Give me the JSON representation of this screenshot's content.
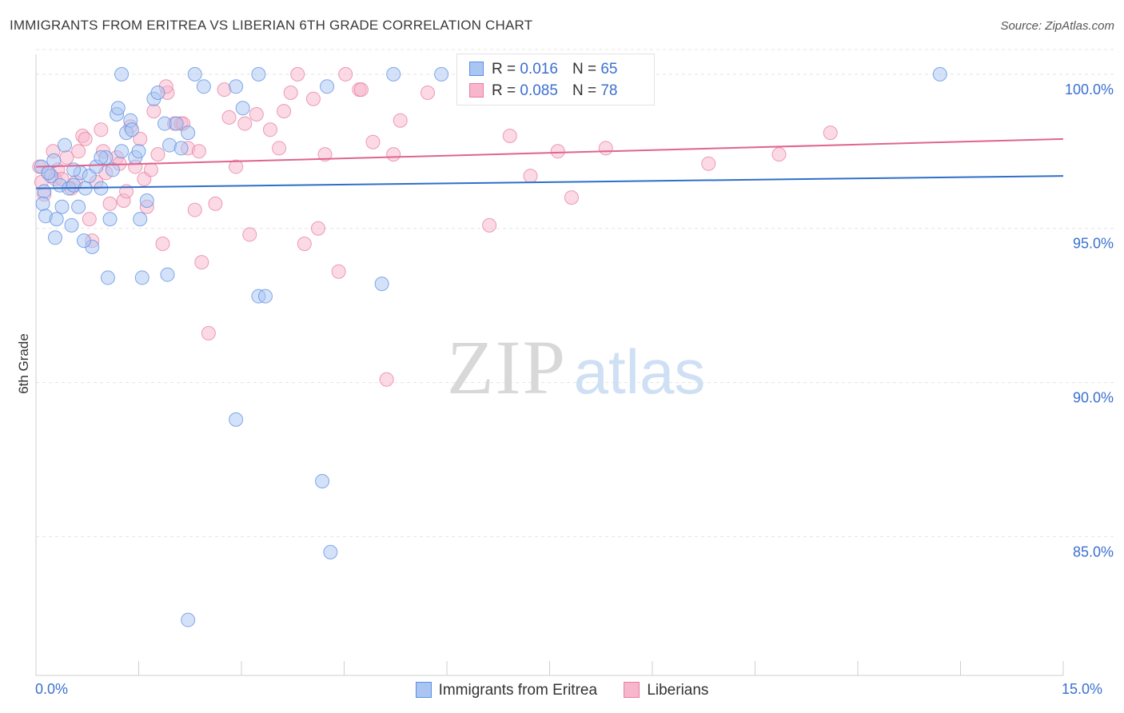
{
  "header": {
    "title": "IMMIGRANTS FROM ERITREA VS LIBERIAN 6TH GRADE CORRELATION CHART",
    "source": "Source: ZipAtlas.com"
  },
  "watermark": {
    "zip": "ZIP",
    "atlas": "atlas"
  },
  "colors": {
    "blue_fill": "#a9c6f3",
    "blue_stroke": "#5b8ee0",
    "blue_line": "#2e6fc9",
    "pink_fill": "#f7b6cb",
    "pink_stroke": "#e77ea0",
    "pink_line": "#e0648e",
    "tick_text": "#3b6fd1",
    "grid": "#e4e4e4"
  },
  "legend": {
    "rows": [
      {
        "r_label": "R =",
        "r_value": "0.016",
        "n_label": "N =",
        "n_value": "65"
      },
      {
        "r_label": "R =",
        "r_value": "0.085",
        "n_label": "N =",
        "n_value": "78"
      }
    ]
  },
  "chart_data": {
    "type": "scatter",
    "title": "IMMIGRANTS FROM ERITREA VS LIBERIAN 6TH GRADE CORRELATION CHART",
    "xlabel": "",
    "ylabel": "6th Grade",
    "xlim": [
      0,
      15
    ],
    "ylim": [
      80.5,
      100.8
    ],
    "x_tick_labels": [
      "0.0%",
      "15.0%"
    ],
    "y_ticks": [
      85,
      90,
      95,
      100
    ],
    "y_tick_labels": [
      "85.0%",
      "90.0%",
      "95.0%",
      "100.0%"
    ],
    "grid": true,
    "series": [
      {
        "name": "Immigrants from Eritrea",
        "color": "blue",
        "R": 0.016,
        "N": 65,
        "trend": {
          "x": [
            0,
            15
          ],
          "y": [
            96.3,
            96.7
          ]
        },
        "points": [
          [
            0.08,
            97.0
          ],
          [
            0.12,
            96.2
          ],
          [
            0.1,
            95.8
          ],
          [
            0.14,
            95.4
          ],
          [
            0.22,
            96.7
          ],
          [
            0.26,
            97.2
          ],
          [
            0.18,
            96.8
          ],
          [
            0.35,
            96.4
          ],
          [
            0.3,
            95.3
          ],
          [
            0.38,
            95.7
          ],
          [
            0.42,
            97.7
          ],
          [
            0.48,
            96.3
          ],
          [
            0.52,
            95.1
          ],
          [
            0.55,
            96.4
          ],
          [
            0.62,
            95.7
          ],
          [
            0.65,
            96.8
          ],
          [
            0.72,
            96.3
          ],
          [
            0.78,
            96.7
          ],
          [
            0.82,
            94.4
          ],
          [
            0.88,
            97.0
          ],
          [
            0.95,
            96.3
          ],
          [
            1.02,
            97.3
          ],
          [
            1.08,
            95.3
          ],
          [
            1.12,
            96.9
          ],
          [
            1.18,
            98.7
          ],
          [
            1.25,
            97.5
          ],
          [
            1.32,
            98.1
          ],
          [
            1.38,
            98.5
          ],
          [
            1.45,
            97.3
          ],
          [
            1.52,
            95.3
          ],
          [
            1.62,
            95.9
          ],
          [
            1.72,
            99.2
          ],
          [
            1.78,
            99.4
          ],
          [
            1.88,
            98.4
          ],
          [
            1.95,
            97.7
          ],
          [
            2.05,
            98.4
          ],
          [
            2.12,
            97.6
          ],
          [
            2.22,
            98.1
          ],
          [
            2.32,
            100.0
          ],
          [
            1.2,
            98.9
          ],
          [
            1.4,
            98.2
          ],
          [
            1.5,
            97.5
          ],
          [
            1.05,
            93.4
          ],
          [
            1.55,
            93.4
          ],
          [
            1.92,
            93.5
          ],
          [
            3.25,
            92.8
          ],
          [
            3.35,
            92.8
          ],
          [
            5.05,
            93.2
          ],
          [
            2.92,
            99.6
          ],
          [
            3.02,
            98.9
          ],
          [
            3.25,
            100.0
          ],
          [
            4.25,
            99.6
          ],
          [
            1.25,
            100.0
          ],
          [
            2.45,
            99.6
          ],
          [
            5.22,
            100.0
          ],
          [
            5.92,
            100.0
          ],
          [
            13.2,
            100.0
          ],
          [
            0.28,
            94.7
          ],
          [
            0.7,
            94.6
          ],
          [
            2.92,
            88.8
          ],
          [
            4.18,
            86.8
          ],
          [
            4.3,
            84.5
          ],
          [
            2.22,
            82.3
          ],
          [
            0.55,
            96.9
          ],
          [
            0.95,
            97.3
          ]
        ]
      },
      {
        "name": "Liberians",
        "color": "pink",
        "R": 0.085,
        "N": 78,
        "trend": {
          "x": [
            0,
            15
          ],
          "y": [
            97.0,
            97.9
          ]
        },
        "points": [
          [
            0.05,
            97.0
          ],
          [
            0.08,
            96.5
          ],
          [
            0.12,
            96.1
          ],
          [
            0.18,
            96.8
          ],
          [
            0.25,
            97.5
          ],
          [
            0.28,
            96.6
          ],
          [
            0.32,
            96.9
          ],
          [
            0.38,
            96.6
          ],
          [
            0.45,
            97.3
          ],
          [
            0.52,
            96.3
          ],
          [
            0.58,
            96.5
          ],
          [
            0.62,
            97.5
          ],
          [
            0.68,
            98.0
          ],
          [
            0.72,
            97.9
          ],
          [
            0.78,
            95.3
          ],
          [
            0.82,
            94.6
          ],
          [
            0.88,
            96.5
          ],
          [
            0.95,
            98.2
          ],
          [
            1.02,
            96.8
          ],
          [
            1.08,
            95.8
          ],
          [
            1.18,
            97.3
          ],
          [
            1.22,
            97.1
          ],
          [
            1.28,
            95.9
          ],
          [
            1.32,
            96.2
          ],
          [
            1.38,
            98.3
          ],
          [
            1.45,
            97.0
          ],
          [
            1.52,
            97.9
          ],
          [
            1.58,
            96.6
          ],
          [
            1.62,
            95.7
          ],
          [
            1.68,
            96.9
          ],
          [
            1.78,
            97.4
          ],
          [
            1.85,
            94.5
          ],
          [
            1.92,
            99.4
          ],
          [
            2.02,
            98.4
          ],
          [
            2.12,
            98.4
          ],
          [
            2.22,
            97.6
          ],
          [
            2.32,
            95.6
          ],
          [
            2.42,
            93.9
          ],
          [
            2.52,
            91.6
          ],
          [
            2.62,
            95.8
          ],
          [
            2.82,
            98.6
          ],
          [
            2.92,
            97.0
          ],
          [
            3.12,
            94.8
          ],
          [
            3.22,
            98.7
          ],
          [
            3.42,
            98.2
          ],
          [
            3.62,
            98.8
          ],
          [
            3.72,
            99.4
          ],
          [
            3.82,
            100.0
          ],
          [
            3.92,
            94.5
          ],
          [
            4.05,
            99.2
          ],
          [
            4.12,
            95.0
          ],
          [
            4.22,
            97.4
          ],
          [
            4.42,
            93.6
          ],
          [
            4.52,
            100.0
          ],
          [
            4.72,
            99.5
          ],
          [
            4.92,
            97.8
          ],
          [
            5.12,
            90.1
          ],
          [
            5.22,
            97.4
          ],
          [
            5.32,
            98.5
          ],
          [
            5.72,
            99.4
          ],
          [
            6.62,
            95.1
          ],
          [
            6.92,
            98.0
          ],
          [
            7.22,
            96.7
          ],
          [
            7.62,
            97.5
          ],
          [
            7.82,
            96.0
          ],
          [
            8.32,
            97.6
          ],
          [
            9.82,
            97.1
          ],
          [
            10.85,
            97.4
          ],
          [
            11.6,
            98.1
          ],
          [
            1.9,
            99.6
          ],
          [
            2.38,
            97.5
          ],
          [
            3.05,
            98.4
          ],
          [
            2.75,
            99.5
          ],
          [
            3.55,
            97.6
          ],
          [
            2.15,
            98.4
          ],
          [
            0.98,
            97.5
          ],
          [
            1.72,
            98.8
          ],
          [
            4.75,
            99.5
          ]
        ]
      }
    ]
  },
  "bottom_legend": {
    "items": [
      {
        "label": "Immigrants from Eritrea"
      },
      {
        "label": "Liberians"
      }
    ]
  }
}
